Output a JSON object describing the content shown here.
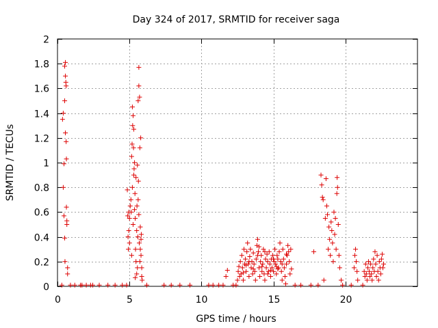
{
  "chart_data": {
    "type": "scatter",
    "title": "Day 324 of 2017, SRMTID for receiver saga",
    "xlabel": "GPS time / hours",
    "ylabel": "SRMTID / TECUs",
    "xlim": [
      0,
      25
    ],
    "ylim": [
      0,
      2
    ],
    "xticks": [
      0,
      5,
      10,
      15,
      20
    ],
    "xtick_labels": [
      "0",
      "5",
      "10",
      "15",
      "20"
    ],
    "yticks": [
      0,
      0.2,
      0.4,
      0.6,
      0.8,
      1,
      1.2,
      1.4,
      1.6,
      1.8,
      2
    ],
    "ytick_labels": [
      "0",
      "0.2",
      "0.4",
      "0.6",
      "0.8",
      "1",
      "1.2",
      "1.4",
      "1.6",
      "1.8",
      "2"
    ],
    "grid": true,
    "marker": "+",
    "color": "#dd0000",
    "series": [
      {
        "name": "SRMTID",
        "points": [
          [
            0.3,
            0.01
          ],
          [
            0.35,
            1.35
          ],
          [
            0.4,
            1.4
          ],
          [
            0.4,
            0.8
          ],
          [
            0.45,
            0.99
          ],
          [
            0.45,
            0.57
          ],
          [
            0.5,
            1.5
          ],
          [
            0.5,
            1.78
          ],
          [
            0.5,
            0.39
          ],
          [
            0.52,
            0.2
          ],
          [
            0.55,
            1.81
          ],
          [
            0.55,
            1.7
          ],
          [
            0.55,
            1.24
          ],
          [
            0.58,
            1.65
          ],
          [
            0.6,
            1.62
          ],
          [
            0.6,
            1.17
          ],
          [
            0.62,
            1.03
          ],
          [
            0.62,
            0.64
          ],
          [
            0.65,
            0.53
          ],
          [
            0.65,
            0.5
          ],
          [
            0.7,
            0.15
          ],
          [
            0.7,
            0.1
          ],
          [
            0.9,
            0.01
          ],
          [
            1.2,
            0.01
          ],
          [
            1.6,
            0.01
          ],
          [
            1.7,
            0.01
          ],
          [
            2.0,
            0.01
          ],
          [
            2.3,
            0.01
          ],
          [
            2.45,
            0.01
          ],
          [
            2.9,
            0.01
          ],
          [
            3.5,
            0.01
          ],
          [
            4.0,
            0.01
          ],
          [
            4.5,
            0.01
          ],
          [
            4.8,
            0.01
          ],
          [
            4.85,
            0.78
          ],
          [
            4.88,
            0.57
          ],
          [
            4.9,
            0.4
          ],
          [
            4.92,
            0.3
          ],
          [
            4.95,
            0.6
          ],
          [
            4.95,
            0.45
          ],
          [
            5.0,
            0.55
          ],
          [
            5.0,
            0.35
          ],
          [
            5.05,
            0.65
          ],
          [
            5.1,
            0.7
          ],
          [
            5.12,
            0.6
          ],
          [
            5.15,
            1.05
          ],
          [
            5.15,
            0.25
          ],
          [
            5.18,
            1.15
          ],
          [
            5.2,
            1.45
          ],
          [
            5.2,
            0.8
          ],
          [
            5.22,
            1.3
          ],
          [
            5.25,
            1.38
          ],
          [
            5.25,
            0.5
          ],
          [
            5.28,
            1.12
          ],
          [
            5.3,
            1.27
          ],
          [
            5.3,
            0.9
          ],
          [
            5.32,
            0.95
          ],
          [
            5.35,
            1.0
          ],
          [
            5.35,
            0.62
          ],
          [
            5.38,
            0.75
          ],
          [
            5.4,
            0.07
          ],
          [
            5.4,
            0.55
          ],
          [
            5.42,
            0.3
          ],
          [
            5.45,
            0.2
          ],
          [
            5.45,
            0.88
          ],
          [
            5.5,
            0.1
          ],
          [
            5.5,
            0.45
          ],
          [
            5.52,
            0.65
          ],
          [
            5.55,
            0.15
          ],
          [
            5.55,
            0.98
          ],
          [
            5.58,
            0.4
          ],
          [
            5.6,
            1.5
          ],
          [
            5.6,
            0.7
          ],
          [
            5.62,
            0.85
          ],
          [
            5.65,
            1.62
          ],
          [
            5.65,
            0.58
          ],
          [
            5.65,
            1.77
          ],
          [
            5.68,
            0.35
          ],
          [
            5.7,
            1.53
          ],
          [
            5.72,
            0.2
          ],
          [
            5.72,
            1.12
          ],
          [
            5.75,
            0.3
          ],
          [
            5.75,
            0.48
          ],
          [
            5.78,
            1.2
          ],
          [
            5.8,
            0.25
          ],
          [
            5.8,
            0.38
          ],
          [
            5.82,
            0.42
          ],
          [
            5.85,
            0.08
          ],
          [
            5.85,
            0.15
          ],
          [
            5.88,
            0.05
          ],
          [
            6.2,
            0.01
          ],
          [
            7.4,
            0.01
          ],
          [
            7.9,
            0.01
          ],
          [
            8.5,
            0.01
          ],
          [
            9.2,
            0.01
          ],
          [
            10.5,
            0.01
          ],
          [
            10.8,
            0.01
          ],
          [
            11.2,
            0.01
          ],
          [
            11.5,
            0.01
          ],
          [
            11.7,
            0.08
          ],
          [
            11.8,
            0.13
          ],
          [
            12.2,
            0.01
          ],
          [
            12.4,
            0.01
          ],
          [
            12.5,
            0.05
          ],
          [
            12.55,
            0.12
          ],
          [
            12.6,
            0.16
          ],
          [
            12.65,
            0.08
          ],
          [
            12.7,
            0.2
          ],
          [
            12.75,
            0.1
          ],
          [
            12.8,
            0.25
          ],
          [
            12.85,
            0.15
          ],
          [
            12.9,
            0.05
          ],
          [
            12.95,
            0.3
          ],
          [
            13.0,
            0.18
          ],
          [
            13.05,
            0.22
          ],
          [
            13.1,
            0.12
          ],
          [
            13.15,
            0.28
          ],
          [
            13.2,
            0.35
          ],
          [
            13.25,
            0.18
          ],
          [
            13.3,
            0.08
          ],
          [
            13.35,
            0.24
          ],
          [
            13.4,
            0.3
          ],
          [
            13.45,
            0.15
          ],
          [
            13.5,
            0.2
          ],
          [
            13.55,
            0.1
          ],
          [
            13.6,
            0.27
          ],
          [
            13.65,
            0.18
          ],
          [
            13.7,
            0.12
          ],
          [
            13.75,
            0.05
          ],
          [
            13.8,
            0.22
          ],
          [
            13.85,
            0.33
          ],
          [
            13.9,
            0.38
          ],
          [
            13.95,
            0.28
          ],
          [
            14.0,
            0.15
          ],
          [
            14.05,
            0.08
          ],
          [
            14.1,
            0.2
          ],
          [
            14.15,
            0.25
          ],
          [
            14.2,
            0.12
          ],
          [
            14.25,
            0.18
          ],
          [
            14.3,
            0.3
          ],
          [
            14.35,
            0.1
          ],
          [
            14.4,
            0.05
          ],
          [
            14.45,
            0.22
          ],
          [
            14.5,
            0.15
          ],
          [
            14.55,
            0.26
          ],
          [
            14.6,
            0.2
          ],
          [
            14.65,
            0.12
          ],
          [
            14.7,
            0.28
          ],
          [
            14.75,
            0.18
          ],
          [
            14.8,
            0.08
          ],
          [
            14.85,
            0.22
          ],
          [
            14.9,
            0.15
          ],
          [
            14.95,
            0.25
          ],
          [
            15.0,
            0.12
          ],
          [
            15.05,
            0.2
          ],
          [
            15.1,
            0.3
          ],
          [
            15.15,
            0.18
          ],
          [
            15.2,
            0.1
          ],
          [
            15.25,
            0.25
          ],
          [
            15.3,
            0.22
          ],
          [
            15.35,
            0.15
          ],
          [
            15.4,
            0.28
          ],
          [
            15.45,
            0.35
          ],
          [
            15.5,
            0.2
          ],
          [
            15.55,
            0.12
          ],
          [
            15.6,
            0.05
          ],
          [
            15.65,
            0.3
          ],
          [
            15.7,
            0.22
          ],
          [
            15.75,
            0.15
          ],
          [
            15.8,
            0.08
          ],
          [
            15.85,
            0.02
          ],
          [
            15.9,
            0.18
          ],
          [
            15.95,
            0.25
          ],
          [
            16.0,
            0.33
          ],
          [
            16.05,
            0.28
          ],
          [
            16.1,
            0.2
          ],
          [
            16.15,
            0.1
          ],
          [
            16.2,
            0.3
          ],
          [
            16.25,
            0.14
          ],
          [
            13.3,
            0.2
          ],
          [
            13.6,
            0.14
          ],
          [
            13.9,
            0.25
          ],
          [
            14.2,
            0.16
          ],
          [
            14.6,
            0.1
          ],
          [
            15.0,
            0.22
          ],
          [
            15.3,
            0.14
          ],
          [
            15.6,
            0.18
          ],
          [
            15.9,
            0.26
          ],
          [
            14.0,
            0.32
          ],
          [
            14.4,
            0.28
          ],
          [
            13.1,
            0.17
          ],
          [
            12.9,
            0.11
          ],
          [
            15.2,
            0.16
          ],
          [
            14.8,
            0.13
          ],
          [
            16.5,
            0.01
          ],
          [
            16.9,
            0.01
          ],
          [
            17.6,
            0.01
          ],
          [
            17.8,
            0.28
          ],
          [
            18.1,
            0.01
          ],
          [
            18.3,
            0.9
          ],
          [
            18.35,
            0.82
          ],
          [
            18.4,
            0.72
          ],
          [
            18.45,
            0.7
          ],
          [
            18.5,
            0.05
          ],
          [
            18.6,
            0.55
          ],
          [
            18.65,
            0.87
          ],
          [
            18.7,
            0.65
          ],
          [
            18.75,
            0.58
          ],
          [
            18.8,
            0.3
          ],
          [
            18.85,
            0.48
          ],
          [
            18.9,
            0.38
          ],
          [
            18.95,
            0.25
          ],
          [
            19.0,
            0.52
          ],
          [
            19.05,
            0.45
          ],
          [
            19.1,
            0.35
          ],
          [
            19.15,
            0.2
          ],
          [
            19.2,
            0.6
          ],
          [
            19.25,
            0.42
          ],
          [
            19.3,
            0.55
          ],
          [
            19.35,
            0.3
          ],
          [
            19.4,
            0.75
          ],
          [
            19.42,
            0.88
          ],
          [
            19.45,
            0.8
          ],
          [
            19.5,
            0.5
          ],
          [
            19.55,
            0.25
          ],
          [
            19.6,
            0.15
          ],
          [
            19.7,
            0.05
          ],
          [
            19.8,
            0.01
          ],
          [
            20.4,
            0.01
          ],
          [
            20.6,
            0.15
          ],
          [
            20.65,
            0.25
          ],
          [
            20.7,
            0.3
          ],
          [
            20.75,
            0.2
          ],
          [
            20.8,
            0.12
          ],
          [
            20.85,
            0.05
          ],
          [
            21.2,
            0.01
          ],
          [
            21.3,
            0.12
          ],
          [
            21.35,
            0.08
          ],
          [
            21.4,
            0.18
          ],
          [
            21.45,
            0.1
          ],
          [
            21.5,
            0.05
          ],
          [
            21.55,
            0.15
          ],
          [
            21.6,
            0.2
          ],
          [
            21.65,
            0.12
          ],
          [
            21.7,
            0.08
          ],
          [
            21.75,
            0.18
          ],
          [
            21.8,
            0.1
          ],
          [
            21.85,
            0.05
          ],
          [
            21.9,
            0.15
          ],
          [
            21.95,
            0.22
          ],
          [
            22.0,
            0.12
          ],
          [
            22.05,
            0.28
          ],
          [
            22.1,
            0.18
          ],
          [
            22.15,
            0.08
          ],
          [
            22.2,
            0.25
          ],
          [
            22.25,
            0.12
          ],
          [
            22.3,
            0.05
          ],
          [
            22.35,
            0.2
          ],
          [
            22.4,
            0.15
          ],
          [
            22.45,
            0.1
          ],
          [
            22.5,
            0.22
          ],
          [
            22.55,
            0.26
          ],
          [
            22.6,
            0.15
          ],
          [
            22.65,
            0.18
          ]
        ]
      }
    ]
  }
}
